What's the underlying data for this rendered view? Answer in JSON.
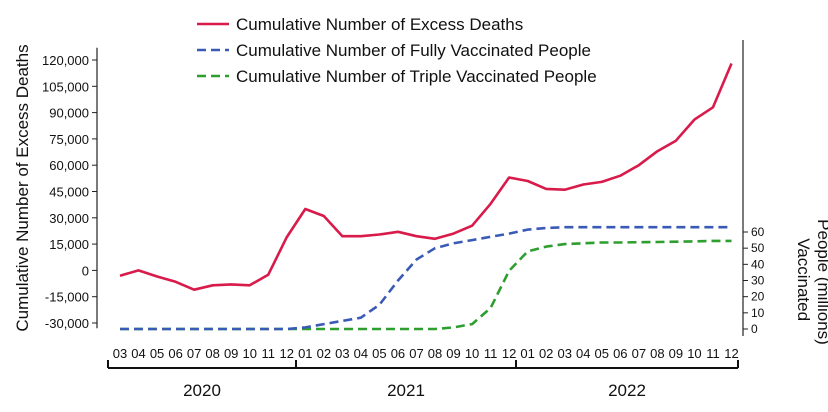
{
  "chart_data": {
    "type": "line",
    "legend": {
      "position": "top-center",
      "entries": [
        {
          "label": "Cumulative Number of Excess Deaths",
          "color": "#d81b4a",
          "style": "solid"
        },
        {
          "label": "Cumulative Number of Fully Vaccinated People",
          "color": "#3a5bb5",
          "style": "dashed"
        },
        {
          "label": "Cumulative Number of Triple Vaccinated People",
          "color": "#2e9e2e",
          "style": "dashed"
        }
      ]
    },
    "ylabel_left": "Cumulative Number of Excess Deaths",
    "ylabel_right_lines": [
      "Vaccinated",
      "People (millions)"
    ],
    "ylim_left": [
      -33000,
      127000
    ],
    "ylim_right": [
      0,
      70
    ],
    "yticks_left": [
      120000,
      105000,
      90000,
      75000,
      60000,
      45000,
      30000,
      15000,
      0,
      -15000,
      -30000
    ],
    "ytick_labels_left": [
      "120,000",
      "105,000",
      "90,000",
      "75,000",
      "60,000",
      "45,000",
      "30,000",
      "15,000",
      "0",
      "-15,000",
      "-30,000"
    ],
    "yticks_right": [
      0,
      10,
      20,
      30,
      40,
      50,
      60
    ],
    "ytick_labels_right": [
      "0",
      "10",
      "20",
      "30",
      "40",
      "50",
      "60"
    ],
    "x_month_labels": [
      "03",
      "04",
      "05",
      "06",
      "07",
      "08",
      "09",
      "10",
      "11",
      "12",
      "01",
      "02",
      "03",
      "04",
      "05",
      "06",
      "07",
      "08",
      "09",
      "10",
      "11",
      "12",
      "01",
      "02",
      "03",
      "04",
      "05",
      "06",
      "07",
      "08",
      "09",
      "10",
      "11",
      "12"
    ],
    "year_groups": [
      {
        "label": "2020",
        "start": 0,
        "end": 9
      },
      {
        "label": "2021",
        "start": 10,
        "end": 21
      },
      {
        "label": "2022",
        "start": 22,
        "end": 33
      }
    ],
    "series": [
      {
        "name": "Cumulative Number of Excess Deaths",
        "axis": "left",
        "color": "#d81b4a",
        "dash": "",
        "values": [
          -3000,
          0,
          -3500,
          -6500,
          -11000,
          -8500,
          -8000,
          -8500,
          -2500,
          19000,
          35000,
          31000,
          19500,
          19500,
          20500,
          22000,
          19500,
          18000,
          21000,
          25500,
          38000,
          53000,
          51000,
          46500,
          46000,
          49000,
          50500,
          54000,
          60000,
          68000,
          74000,
          86000,
          93000,
          118000
        ]
      },
      {
        "name": "Cumulative Number of Fully Vaccinated People",
        "axis": "right",
        "color": "#3a5bb5",
        "dash": "9 5",
        "values": [
          0,
          0,
          0,
          0,
          0,
          0,
          0,
          0,
          0,
          0,
          1,
          3,
          5,
          7,
          15,
          30,
          43,
          50,
          53,
          55,
          57,
          59,
          61.5,
          62.5,
          63,
          63,
          63,
          63,
          63,
          63,
          63,
          63,
          63,
          63
        ]
      },
      {
        "name": "Cumulative Number of Triple Vaccinated People",
        "axis": "right",
        "color": "#2e9e2e",
        "dash": "9 5",
        "values": [
          0,
          0,
          0,
          0,
          0,
          0,
          0,
          0,
          0,
          0,
          0,
          0,
          0,
          0,
          0,
          0,
          0,
          0,
          1,
          3,
          13,
          36,
          48,
          51,
          52.5,
          53,
          53.5,
          53.5,
          53.7,
          53.8,
          54,
          54.2,
          54.5,
          54.5
        ]
      }
    ]
  }
}
